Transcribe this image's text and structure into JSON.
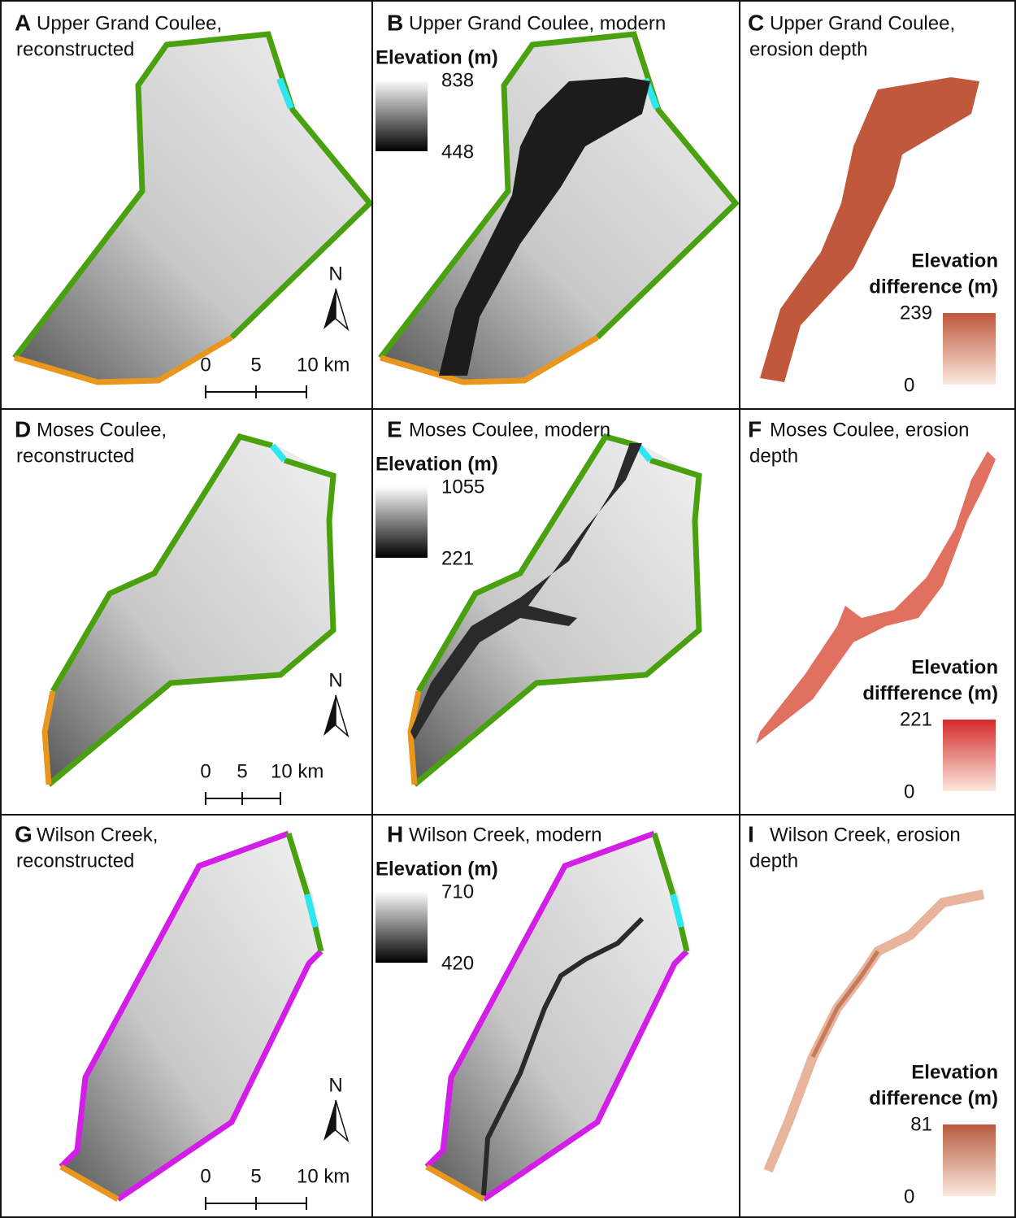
{
  "panels": [
    {
      "letter": "A",
      "title_lines": [
        "Upper Grand Coulee,",
        "reconstructed"
      ],
      "scale_bar": [
        "0",
        "5",
        "10 km"
      ],
      "north": "N"
    },
    {
      "letter": "B",
      "title_lines": [
        "Upper Grand Coulee, modern"
      ],
      "legend": {
        "title_lines": [
          "Elevation (m)"
        ],
        "max": 838,
        "min": 448
      }
    },
    {
      "letter": "C",
      "title_lines": [
        "Upper Grand Coulee,",
        "erosion depth"
      ],
      "legend": {
        "title_lines": [
          "Elevation",
          "difference (m)"
        ],
        "max": 239,
        "min": 0
      }
    },
    {
      "letter": "D",
      "title_lines": [
        "Moses Coulee,",
        "reconstructed"
      ],
      "scale_bar": [
        "0",
        "5",
        "10 km"
      ],
      "north": "N"
    },
    {
      "letter": "E",
      "title_lines": [
        "Moses Coulee, modern"
      ],
      "legend": {
        "title_lines": [
          "Elevation (m)"
        ],
        "max": 1055,
        "min": 221
      }
    },
    {
      "letter": "F",
      "title_lines": [
        "Moses Coulee, erosion",
        "depth"
      ],
      "legend": {
        "title_lines": [
          "Elevation",
          "diffference (m)"
        ],
        "max": 221,
        "min": 0
      }
    },
    {
      "letter": "G",
      "title_lines": [
        "Wilson Creek,",
        "reconstructed"
      ],
      "scale_bar": [
        "0",
        "5",
        "10 km"
      ],
      "north": "N"
    },
    {
      "letter": "H",
      "title_lines": [
        "Wilson Creek, modern"
      ],
      "legend": {
        "title_lines": [
          "Elevation (m)"
        ],
        "max": 710,
        "min": 420
      }
    },
    {
      "letter": "I",
      "title_lines": [
        "Wilson Creek, erosion",
        "depth"
      ],
      "legend": {
        "title_lines": [
          "Elevation",
          "difference (m)"
        ],
        "max": 81,
        "min": 0
      }
    }
  ]
}
